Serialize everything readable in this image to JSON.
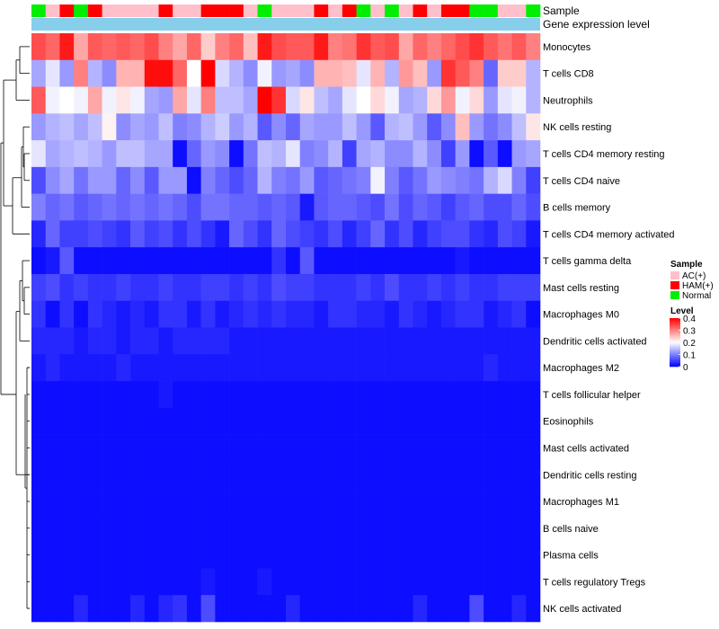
{
  "chart_data": {
    "type": "heatmap",
    "annotations": {
      "sample_label": "Sample",
      "expression_label": "Gene expression level"
    },
    "legend": {
      "sample_title": "Sample",
      "sample_entries": [
        {
          "label": "AC(+)",
          "color": "#ffc0cb"
        },
        {
          "label": "HAM(+)",
          "color": "#ff0000"
        },
        {
          "label": "Normal",
          "color": "#00ee00"
        }
      ],
      "level_title": "Level",
      "level_ticks": [
        "0.4",
        "0.3",
        "0.2",
        "0.1",
        "0"
      ],
      "level_tick_values": [
        0.4,
        0.3,
        0.2,
        0.1,
        0
      ],
      "color_low": "#0000ff",
      "color_mid": "#ffffff",
      "color_high": "#ff0000",
      "mid_value": 0.2,
      "max_value": 0.4,
      "position": "right"
    },
    "samples": [
      "N",
      "A",
      "H",
      "N",
      "H",
      "A",
      "A",
      "A",
      "A",
      "H",
      "A",
      "A",
      "H",
      "H",
      "H",
      "A",
      "N",
      "A",
      "A",
      "A",
      "H",
      "A",
      "H",
      "N",
      "A",
      "N",
      "A",
      "H",
      "A",
      "H",
      "H",
      "N",
      "N",
      "A",
      "A",
      "N"
    ],
    "sample_colors": {
      "A": "#ffc0cb",
      "H": "#ff0000",
      "N": "#00ee00"
    },
    "expression_color": "#87ceeb",
    "rows": [
      {
        "name": "Monocytes",
        "values": [
          0.34,
          0.32,
          0.38,
          0.27,
          0.33,
          0.32,
          0.33,
          0.32,
          0.34,
          0.3,
          0.27,
          0.32,
          0.24,
          0.3,
          0.32,
          0.25,
          0.38,
          0.34,
          0.33,
          0.33,
          0.38,
          0.3,
          0.31,
          0.36,
          0.33,
          0.34,
          0.27,
          0.32,
          0.3,
          0.32,
          0.34,
          0.36,
          0.33,
          0.31,
          0.33,
          0.3
        ]
      },
      {
        "name": "T cells CD8",
        "values": [
          0.13,
          0.18,
          0.12,
          0.3,
          0.14,
          0.11,
          0.26,
          0.26,
          0.39,
          0.39,
          0.32,
          0.2,
          0.4,
          0.17,
          0.14,
          0.11,
          0.19,
          0.12,
          0.13,
          0.11,
          0.26,
          0.26,
          0.25,
          0.18,
          0.26,
          0.14,
          0.28,
          0.25,
          0.12,
          0.36,
          0.33,
          0.3,
          0.08,
          0.24,
          0.24,
          0.14
        ]
      },
      {
        "name": "Neutrophils",
        "values": [
          0.33,
          0.19,
          0.2,
          0.19,
          0.27,
          0.19,
          0.22,
          0.19,
          0.13,
          0.12,
          0.27,
          0.18,
          0.3,
          0.15,
          0.15,
          0.13,
          0.4,
          0.36,
          0.17,
          0.22,
          0.15,
          0.13,
          0.18,
          0.2,
          0.23,
          0.19,
          0.13,
          0.14,
          0.23,
          0.28,
          0.19,
          0.23,
          0.12,
          0.18,
          0.19,
          0.14
        ]
      },
      {
        "name": "NK cells resting",
        "values": [
          0.12,
          0.14,
          0.15,
          0.13,
          0.15,
          0.21,
          0.11,
          0.13,
          0.12,
          0.15,
          0.1,
          0.11,
          0.14,
          0.16,
          0.12,
          0.14,
          0.07,
          0.11,
          0.08,
          0.13,
          0.12,
          0.12,
          0.15,
          0.12,
          0.07,
          0.14,
          0.15,
          0.12,
          0.07,
          0.11,
          0.25,
          0.12,
          0.09,
          0.11,
          0.15,
          0.22
        ]
      },
      {
        "name": "T cells CD4 memory resting",
        "values": [
          0.18,
          0.13,
          0.14,
          0.15,
          0.14,
          0.12,
          0.15,
          0.15,
          0.13,
          0.13,
          0.01,
          0.08,
          0.12,
          0.11,
          0.01,
          0.09,
          0.15,
          0.14,
          0.18,
          0.1,
          0.11,
          0.14,
          0.05,
          0.13,
          0.14,
          0.11,
          0.11,
          0.14,
          0.11,
          0.05,
          0.12,
          0.01,
          0.07,
          0.01,
          0.12,
          0.13
        ]
      },
      {
        "name": "T cells CD4 naive",
        "values": [
          0.06,
          0.11,
          0.13,
          0.09,
          0.12,
          0.12,
          0.08,
          0.11,
          0.07,
          0.12,
          0.12,
          0.01,
          0.1,
          0.08,
          0.06,
          0.08,
          0.14,
          0.1,
          0.09,
          0.12,
          0.07,
          0.08,
          0.09,
          0.1,
          0.19,
          0.1,
          0.07,
          0.09,
          0.12,
          0.11,
          0.1,
          0.09,
          0.14,
          0.17,
          0.1,
          0.05
        ]
      },
      {
        "name": "B cells memory",
        "values": [
          0.1,
          0.08,
          0.09,
          0.07,
          0.08,
          0.09,
          0.08,
          0.09,
          0.08,
          0.09,
          0.08,
          0.06,
          0.09,
          0.09,
          0.08,
          0.08,
          0.07,
          0.08,
          0.07,
          0.02,
          0.07,
          0.08,
          0.08,
          0.07,
          0.06,
          0.09,
          0.06,
          0.08,
          0.07,
          0.05,
          0.07,
          0.08,
          0.06,
          0.06,
          0.08,
          0.06
        ]
      },
      {
        "name": "T cells CD4 memory activated",
        "values": [
          0.03,
          0.08,
          0.05,
          0.05,
          0.06,
          0.05,
          0.04,
          0.07,
          0.05,
          0.06,
          0.04,
          0.06,
          0.04,
          0.02,
          0.08,
          0.06,
          0.04,
          0.08,
          0.06,
          0.05,
          0.04,
          0.06,
          0.03,
          0.05,
          0.08,
          0.04,
          0.06,
          0.03,
          0.05,
          0.06,
          0.06,
          0.04,
          0.03,
          0.06,
          0.05,
          0.02
        ]
      },
      {
        "name": "T cells gamma delta",
        "values": [
          0.01,
          0.02,
          0.07,
          0.01,
          0.01,
          0.01,
          0.01,
          0.01,
          0.01,
          0.01,
          0.01,
          0.01,
          0.01,
          0.01,
          0.01,
          0.01,
          0.01,
          0.04,
          0.01,
          0.07,
          0.01,
          0.01,
          0.01,
          0.01,
          0.01,
          0.01,
          0.01,
          0.01,
          0.01,
          0.01,
          0.02,
          0.01,
          0.01,
          0.01,
          0.01,
          0.01
        ]
      },
      {
        "name": "Mast cells resting",
        "values": [
          0.05,
          0.06,
          0.04,
          0.05,
          0.04,
          0.04,
          0.05,
          0.04,
          0.04,
          0.05,
          0.04,
          0.04,
          0.05,
          0.05,
          0.04,
          0.05,
          0.04,
          0.06,
          0.05,
          0.05,
          0.04,
          0.04,
          0.04,
          0.05,
          0.04,
          0.06,
          0.04,
          0.04,
          0.05,
          0.04,
          0.05,
          0.04,
          0.04,
          0.05,
          0.05,
          0.05
        ]
      },
      {
        "name": "Macrophages M0",
        "values": [
          0.04,
          0.01,
          0.04,
          0.01,
          0.04,
          0.03,
          0.02,
          0.03,
          0.02,
          0.04,
          0.04,
          0.02,
          0.04,
          0.02,
          0.03,
          0.04,
          0.03,
          0.04,
          0.03,
          0.03,
          0.02,
          0.04,
          0.04,
          0.03,
          0.03,
          0.02,
          0.04,
          0.03,
          0.02,
          0.03,
          0.04,
          0.04,
          0.02,
          0.03,
          0.04,
          0.01
        ]
      },
      {
        "name": "Dendritic cells activated",
        "values": [
          0.03,
          0.03,
          0.03,
          0.02,
          0.03,
          0.03,
          0.02,
          0.03,
          0.03,
          0.02,
          0.03,
          0.03,
          0.03,
          0.03,
          0.02,
          0.02,
          0.02,
          0.02,
          0.02,
          0.02,
          0.02,
          0.02,
          0.02,
          0.02,
          0.02,
          0.02,
          0.02,
          0.02,
          0.02,
          0.02,
          0.02,
          0.02,
          0.02,
          0.02,
          0.02,
          0.02
        ]
      },
      {
        "name": "Macrophages M2",
        "values": [
          0.02,
          0.03,
          0.02,
          0.02,
          0.02,
          0.02,
          0.03,
          0.02,
          0.02,
          0.02,
          0.02,
          0.02,
          0.02,
          0.02,
          0.02,
          0.02,
          0.02,
          0.02,
          0.02,
          0.02,
          0.02,
          0.02,
          0.02,
          0.02,
          0.02,
          0.02,
          0.02,
          0.02,
          0.02,
          0.02,
          0.02,
          0.02,
          0.03,
          0.02,
          0.02,
          0.02
        ]
      },
      {
        "name": "T cells follicular helper",
        "values": [
          0.01,
          0.01,
          0.01,
          0.01,
          0.01,
          0.01,
          0.01,
          0.01,
          0.01,
          0.02,
          0.01,
          0.01,
          0.01,
          0.01,
          0.01,
          0.01,
          0.01,
          0.01,
          0.01,
          0.01,
          0.01,
          0.01,
          0.01,
          0.01,
          0.01,
          0.01,
          0.01,
          0.01,
          0.01,
          0.01,
          0.01,
          0.01,
          0.01,
          0.01,
          0.01,
          0.01
        ]
      },
      {
        "name": "Eosinophils",
        "values": [
          0.01,
          0.01,
          0.01,
          0.01,
          0.01,
          0.01,
          0.01,
          0.01,
          0.01,
          0.01,
          0.01,
          0.01,
          0.01,
          0.01,
          0.01,
          0.01,
          0.01,
          0.01,
          0.01,
          0.01,
          0.01,
          0.01,
          0.01,
          0.01,
          0.01,
          0.01,
          0.01,
          0.01,
          0.01,
          0.01,
          0.01,
          0.01,
          0.01,
          0.01,
          0.01,
          0.01
        ]
      },
      {
        "name": "Mast cells activated",
        "values": [
          0.01,
          0.01,
          0.01,
          0.01,
          0.01,
          0.01,
          0.01,
          0.01,
          0.01,
          0.01,
          0.01,
          0.01,
          0.01,
          0.01,
          0.01,
          0.01,
          0.01,
          0.01,
          0.01,
          0.01,
          0.01,
          0.01,
          0.01,
          0.01,
          0.01,
          0.01,
          0.01,
          0.01,
          0.01,
          0.01,
          0.01,
          0.01,
          0.01,
          0.01,
          0.01,
          0.01
        ]
      },
      {
        "name": "Dendritic cells resting",
        "values": [
          0.01,
          0.01,
          0.01,
          0.01,
          0.01,
          0.01,
          0.01,
          0.01,
          0.01,
          0.01,
          0.01,
          0.01,
          0.01,
          0.01,
          0.01,
          0.01,
          0.01,
          0.01,
          0.01,
          0.01,
          0.01,
          0.01,
          0.01,
          0.01,
          0.01,
          0.01,
          0.01,
          0.01,
          0.01,
          0.01,
          0.01,
          0.01,
          0.01,
          0.01,
          0.01,
          0.01
        ]
      },
      {
        "name": "Macrophages M1",
        "values": [
          0.01,
          0.01,
          0.01,
          0.01,
          0.01,
          0.01,
          0.01,
          0.01,
          0.01,
          0.01,
          0.01,
          0.01,
          0.01,
          0.01,
          0.01,
          0.01,
          0.01,
          0.01,
          0.01,
          0.01,
          0.01,
          0.01,
          0.01,
          0.01,
          0.01,
          0.01,
          0.01,
          0.01,
          0.01,
          0.01,
          0.01,
          0.01,
          0.01,
          0.01,
          0.01,
          0.01
        ]
      },
      {
        "name": "B cells naive",
        "values": [
          0.01,
          0.01,
          0.01,
          0.01,
          0.01,
          0.01,
          0.01,
          0.01,
          0.01,
          0.01,
          0.01,
          0.01,
          0.01,
          0.01,
          0.01,
          0.01,
          0.01,
          0.01,
          0.01,
          0.01,
          0.01,
          0.01,
          0.01,
          0.01,
          0.01,
          0.01,
          0.01,
          0.01,
          0.01,
          0.01,
          0.01,
          0.01,
          0.01,
          0.01,
          0.01,
          0.01
        ]
      },
      {
        "name": "Plasma cells",
        "values": [
          0.01,
          0.01,
          0.01,
          0.01,
          0.01,
          0.01,
          0.01,
          0.01,
          0.01,
          0.01,
          0.01,
          0.01,
          0.01,
          0.01,
          0.01,
          0.01,
          0.01,
          0.01,
          0.01,
          0.01,
          0.01,
          0.01,
          0.01,
          0.01,
          0.01,
          0.01,
          0.01,
          0.01,
          0.01,
          0.01,
          0.01,
          0.01,
          0.01,
          0.01,
          0.01,
          0.01
        ]
      },
      {
        "name": "T cells regulatory  Tregs",
        "values": [
          0.01,
          0.01,
          0.01,
          0.01,
          0.01,
          0.01,
          0.01,
          0.01,
          0.01,
          0.01,
          0.01,
          0.01,
          0.02,
          0.01,
          0.01,
          0.01,
          0.02,
          0.01,
          0.01,
          0.01,
          0.01,
          0.01,
          0.01,
          0.01,
          0.01,
          0.01,
          0.01,
          0.01,
          0.01,
          0.01,
          0.01,
          0.01,
          0.01,
          0.01,
          0.01,
          0.01
        ]
      },
      {
        "name": "NK cells activated",
        "values": [
          0.01,
          0.01,
          0.01,
          0.03,
          0.01,
          0.01,
          0.01,
          0.03,
          0.01,
          0.03,
          0.04,
          0.01,
          0.06,
          0.01,
          0.01,
          0.01,
          0.01,
          0.01,
          0.03,
          0.01,
          0.01,
          0.01,
          0.01,
          0.01,
          0.01,
          0.01,
          0.01,
          0.03,
          0.01,
          0.01,
          0.01,
          0.06,
          0.01,
          0.01,
          0.03,
          0.01
        ]
      }
    ]
  }
}
